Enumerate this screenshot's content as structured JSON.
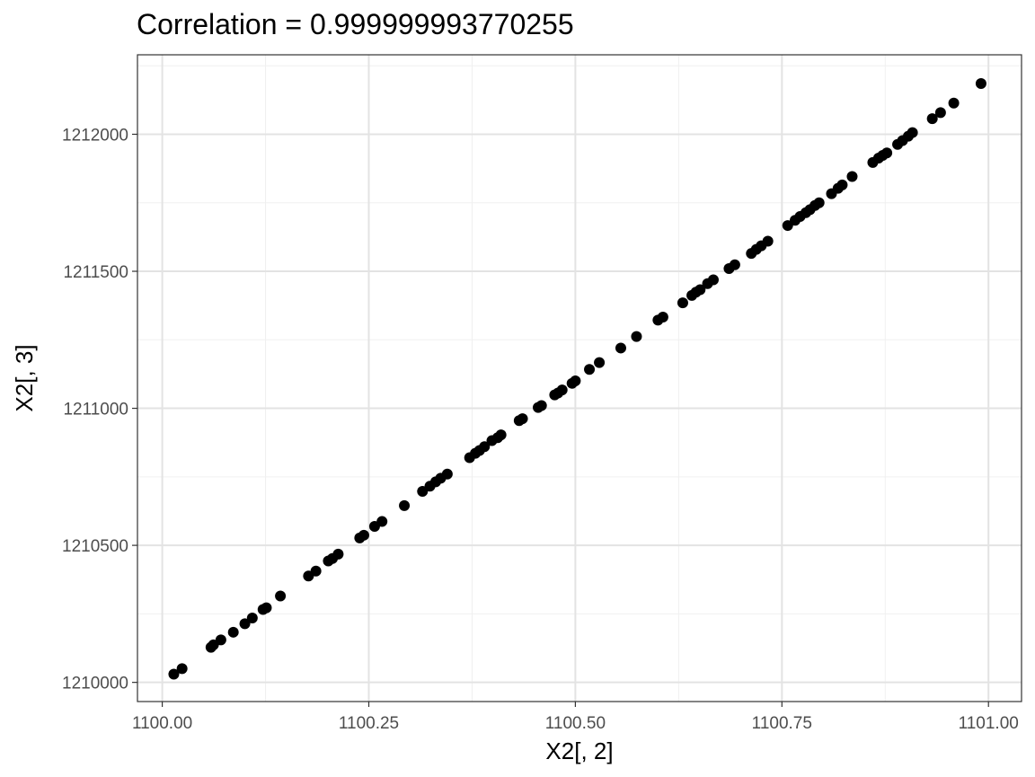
{
  "chart_data": {
    "type": "scatter",
    "title": "Correlation = 0.999999993770255",
    "xlabel": "X2[, 2]",
    "ylabel": "X2[, 3]",
    "xlim": [
      1099.97,
      1101.04
    ],
    "ylim": [
      1209930,
      1212290
    ],
    "x_ticks": [
      1100.0,
      1100.25,
      1100.5,
      1100.75,
      1101.0
    ],
    "x_tick_labels": [
      "1100.00",
      "1100.25",
      "1100.50",
      "1100.75",
      "1101.00"
    ],
    "y_ticks": [
      1210000,
      1210500,
      1211000,
      1211500,
      1212000
    ],
    "y_tick_labels": [
      "1210000",
      "1210500",
      "1211000",
      "1211500",
      "1212000"
    ],
    "grid": true,
    "theme": "black-and-white",
    "point_color": "#000000",
    "relation": "y = 1100.05*x + 1.05e-4 (approx, points lie on a straight line)",
    "x": [
      1100.014,
      1100.024,
      1100.059,
      1100.062,
      1100.071,
      1100.086,
      1100.1,
      1100.109,
      1100.122,
      1100.126,
      1100.143,
      1100.177,
      1100.186,
      1100.201,
      1100.206,
      1100.213,
      1100.239,
      1100.244,
      1100.257,
      1100.266,
      1100.293,
      1100.315,
      1100.324,
      1100.331,
      1100.337,
      1100.345,
      1100.372,
      1100.379,
      1100.384,
      1100.39,
      1100.399,
      1100.406,
      1100.41,
      1100.432,
      1100.436,
      1100.455,
      1100.459,
      1100.475,
      1100.479,
      1100.484,
      1100.496,
      1100.5,
      1100.517,
      1100.529,
      1100.555,
      1100.574,
      1100.6,
      1100.606,
      1100.63,
      1100.641,
      1100.646,
      1100.651,
      1100.66,
      1100.667,
      1100.686,
      1100.693,
      1100.713,
      1100.719,
      1100.725,
      1100.733,
      1100.757,
      1100.766,
      1100.772,
      1100.779,
      1100.784,
      1100.79,
      1100.795,
      1100.81,
      1100.818,
      1100.823,
      1100.835,
      1100.86,
      1100.867,
      1100.872,
      1100.877,
      1100.89,
      1100.896,
      1100.903,
      1100.908,
      1100.932,
      1100.942,
      1100.958,
      1100.991
    ],
    "y": [
      1210030,
      1210050,
      1210128,
      1210137,
      1210155,
      1210183,
      1210214,
      1210235,
      1210266,
      1210272,
      1210315,
      1210388,
      1210406,
      1210443,
      1210452,
      1210468,
      1210527,
      1210537,
      1210569,
      1210587,
      1210645,
      1210697,
      1210716,
      1210732,
      1210745,
      1210760,
      1210820,
      1210836,
      1210846,
      1210860,
      1210882,
      1210893,
      1210903,
      1210955,
      1210962,
      1211003,
      1211010,
      1211049,
      1211056,
      1211067,
      1211091,
      1211100,
      1211142,
      1211167,
      1211220,
      1211262,
      1211322,
      1211333,
      1211385,
      1211412,
      1211424,
      1211433,
      1211455,
      1211469,
      1211510,
      1211524,
      1211565,
      1211580,
      1211593,
      1211610,
      1211667,
      1211686,
      1211700,
      1211714,
      1211725,
      1211740,
      1211750,
      1211783,
      1211803,
      1211815,
      1211846,
      1211897,
      1211913,
      1211923,
      1211932,
      1211963,
      1211977,
      1211993,
      1212006,
      1212057,
      1212079,
      1212114,
      1212185
    ]
  }
}
